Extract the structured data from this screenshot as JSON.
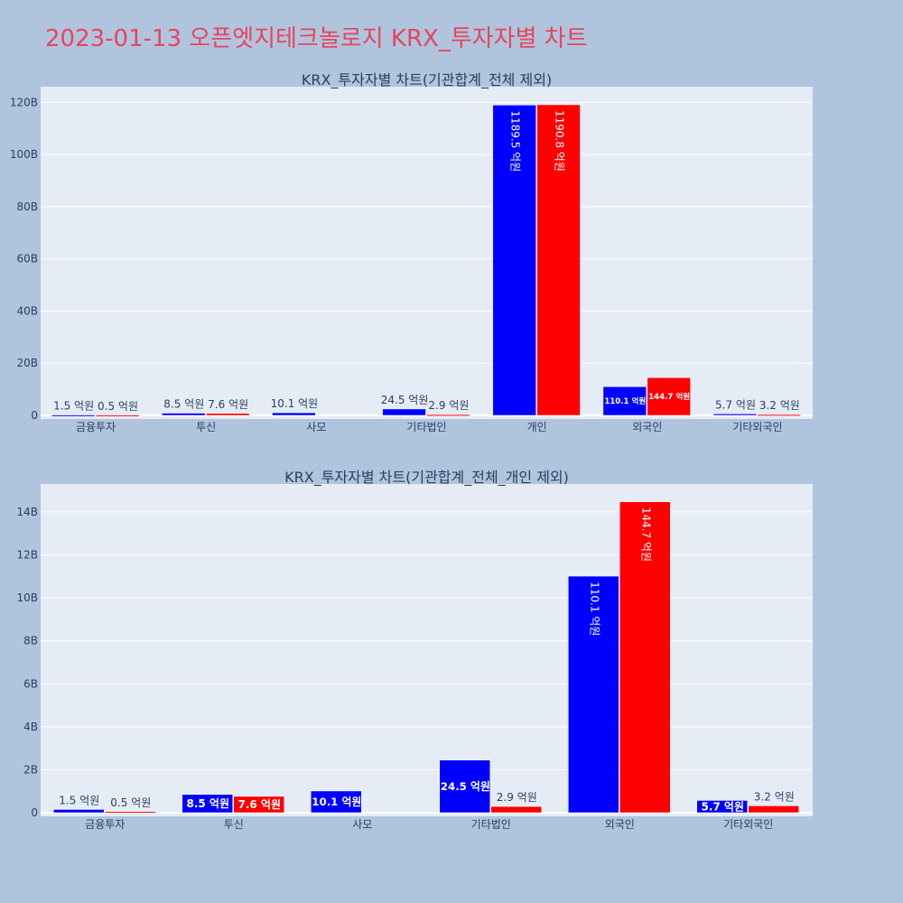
{
  "page": {
    "title": "2023-01-13 오픈엣지테크놀로지 KRX_투자자별 차트",
    "title_color": "#e8455a",
    "background": "#b0c4de",
    "plot_background": "#e5ecf6"
  },
  "chart_data": [
    {
      "type": "bar",
      "title": "KRX_투자자별 차트(기관합계_전체 제외)",
      "categories": [
        "금융투자",
        "투신",
        "사모",
        "기타법인",
        "개인",
        "외국인",
        "기타외국인"
      ],
      "series": [
        {
          "color": "#0000ff",
          "values": [
            0.15,
            0.85,
            1.01,
            2.45,
            118.95,
            11.01,
            0.57
          ],
          "labels": [
            "1.5 억원",
            "8.5 억원",
            "10.1 억원",
            "24.5 억원",
            "1189.5 억원",
            "110.1 억원",
            "5.7 억원"
          ]
        },
        {
          "color": "#ff0000",
          "values": [
            0.05,
            0.76,
            0,
            0.29,
            119.08,
            14.47,
            0.32
          ],
          "labels": [
            "0.5 억원",
            "7.6 억원",
            "",
            "2.9 억원",
            "1190.8 억원",
            "144.7 억원",
            "3.2 억원"
          ]
        }
      ],
      "ylim": [
        0,
        126
      ],
      "yticks": [
        0,
        20,
        40,
        60,
        80,
        100,
        120
      ],
      "ytick_labels": [
        "0",
        "20B",
        "40B",
        "60B",
        "80B",
        "100B",
        "120B"
      ],
      "grid": true
    },
    {
      "type": "bar",
      "title": "KRX_투자자별 차트(기관합계_전체_개인 제외)",
      "categories": [
        "금융투자",
        "투신",
        "사모",
        "기타법인",
        "외국인",
        "기타외국인"
      ],
      "series": [
        {
          "color": "#0000ff",
          "values": [
            0.15,
            0.85,
            1.01,
            2.45,
            11.01,
            0.57
          ],
          "labels": [
            "1.5 억원",
            "8.5 억원",
            "10.1 억원",
            "24.5 억원",
            "110.1 억원",
            "5.7 억원"
          ]
        },
        {
          "color": "#ff0000",
          "values": [
            0.05,
            0.76,
            0,
            0.29,
            14.47,
            0.32
          ],
          "labels": [
            "0.5 억원",
            "7.6 억원",
            "",
            "2.9 억원",
            "144.7 억원",
            "3.2 억원"
          ]
        }
      ],
      "ylim": [
        0,
        15.3
      ],
      "yticks": [
        0,
        2,
        4,
        6,
        8,
        10,
        12,
        14
      ],
      "ytick_labels": [
        "0",
        "2B",
        "4B",
        "6B",
        "8B",
        "10B",
        "12B",
        "14B"
      ],
      "grid": true
    }
  ]
}
